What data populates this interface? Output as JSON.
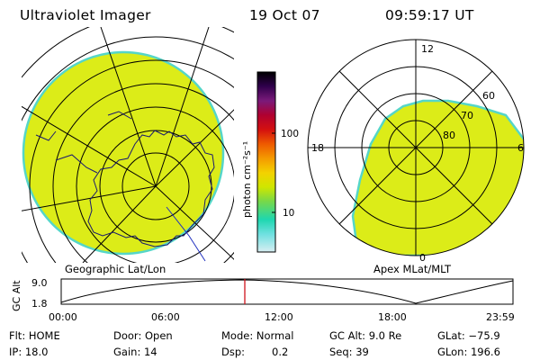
{
  "header": {
    "instrument": "Ultraviolet Imager",
    "date": "19 Oct 07",
    "time": "09:59:17 UT"
  },
  "colors": {
    "emission_fill": "#dcec18",
    "emission_edge": "#55d6c8",
    "time_marker": "#d0131b"
  },
  "colorbar": {
    "unit_label": "photon cm⁻²s⁻¹",
    "ticks": [
      "100",
      "10"
    ],
    "stops": [
      "#000000",
      "#30004c",
      "#7a1a7a",
      "#b00030",
      "#d41010",
      "#ee5a00",
      "#f49a00",
      "#f3d200",
      "#cfe600",
      "#76d84a",
      "#1ed7b0",
      "#6ee0e0",
      "#d8eef2"
    ]
  },
  "geo_panel": {
    "caption": "Geographic Lat/Lon"
  },
  "mlt_panel": {
    "caption": "Apex MLat/MLT",
    "mlt_labels": {
      "top": "12",
      "left": "18",
      "right": "6",
      "bottom": "0"
    },
    "lat_labels": [
      "60",
      "70",
      "80"
    ]
  },
  "altitude_plot": {
    "ylabel": "GC Alt",
    "y_ticks": [
      "9.0",
      "1.8"
    ],
    "x_ticks": [
      "00:00",
      "06:00",
      "12:00",
      "18:00",
      "23:59"
    ]
  },
  "footer": {
    "filter": "Flt: HOME",
    "ip": "IP: 18.0",
    "door": "Door: Open",
    "gain": "Gain: 14",
    "mode": "Mode: Normal",
    "dsp_label": "Dsp:",
    "dsp_value": "0.2",
    "gc_alt": "GC Alt: 9.0 Re",
    "seq": "Seq: 39",
    "glat": "GLat: −75.9",
    "glon": "GLon: 196.6"
  }
}
